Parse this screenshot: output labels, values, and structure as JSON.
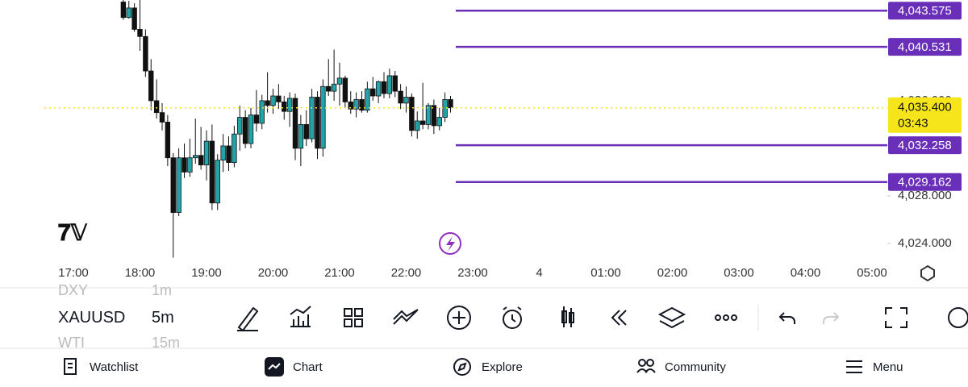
{
  "chart_data": {
    "type": "candlestick",
    "x": [
      "17:45",
      "17:50",
      "17:55",
      "18:00",
      "18:05",
      "18:10",
      "18:15",
      "18:20",
      "18:25",
      "18:30",
      "18:35",
      "18:40",
      "18:45",
      "18:50",
      "18:55",
      "19:00",
      "19:05",
      "19:10",
      "19:15",
      "19:20",
      "19:25",
      "19:30",
      "19:35",
      "19:40",
      "19:45",
      "19:50",
      "19:55",
      "20:00",
      "20:05",
      "20:10",
      "20:15",
      "20:20",
      "20:25",
      "20:30",
      "20:35",
      "20:40",
      "20:45",
      "20:50",
      "20:55",
      "21:00",
      "21:05",
      "21:10",
      "21:15",
      "21:20",
      "21:25",
      "21:30",
      "21:35",
      "21:40",
      "21:45",
      "21:50",
      "21:55",
      "22:00",
      "22:05",
      "22:10",
      "22:15",
      "22:20",
      "22:25",
      "22:30",
      "22:35",
      "22:40"
    ],
    "open": [
      4044.3,
      4043.0,
      4043.8,
      4042.0,
      4041.4,
      4038.5,
      4036.0,
      4035.0,
      4034.2,
      4031.2,
      4026.6,
      4031.2,
      4030.0,
      4031.2,
      4031.4,
      4030.6,
      4032.6,
      4027.4,
      4031.0,
      4032.2,
      4030.8,
      4033.2,
      4034.6,
      4032.4,
      4034.8,
      4034.1,
      4036.0,
      4035.6,
      4036.4,
      4035.9,
      4035.1,
      4036.2,
      4032.0,
      4034.0,
      4032.8,
      4036.3,
      4032.0,
      4037.2,
      4036.8,
      4037.4,
      4037.9,
      4035.9,
      4035.3,
      4036.1,
      4035.2,
      4037.0,
      4036.4,
      4037.6,
      4036.6,
      4038.1,
      4036.8,
      4035.8,
      4036.3,
      4033.5,
      4034.3,
      4034.0,
      4035.6,
      4033.9,
      4034.6,
      4036.1
    ],
    "high": [
      4044.6,
      4044.4,
      4044.2,
      4044.5,
      4042.0,
      4039.5,
      4037.8,
      4035.8,
      4034.8,
      4031.6,
      4032.0,
      4032.4,
      4032.8,
      4034.5,
      4033.8,
      4033.5,
      4034.0,
      4031.5,
      4033.2,
      4033.0,
      4033.9,
      4035.6,
      4035.2,
      4035.4,
      4036.9,
      4036.5,
      4038.4,
      4037.0,
      4037.4,
      4036.4,
      4036.7,
      4036.6,
      4034.8,
      4035.2,
      4037.0,
      4036.8,
      4037.8,
      4039.5,
      4040.3,
      4039.2,
      4038.1,
      4036.8,
      4036.7,
      4036.8,
      4037.6,
      4038.0,
      4037.7,
      4038.4,
      4038.7,
      4038.5,
      4037.4,
      4037.2,
      4036.6,
      4035.1,
      4037.5,
      4035.8,
      4036.1,
      4035.4,
      4036.7,
      4036.4
    ],
    "low": [
      4042.8,
      4042.9,
      4041.8,
      4040.2,
      4038.0,
      4035.2,
      4034.5,
      4033.5,
      4030.5,
      4022.8,
      4026.3,
      4029.5,
      4029.6,
      4030.7,
      4030.2,
      4029.3,
      4026.8,
      4026.8,
      4030.0,
      4030.1,
      4030.4,
      4031.8,
      4032.0,
      4032.0,
      4033.4,
      4033.6,
      4035.0,
      4034.9,
      4035.3,
      4034.4,
      4033.8,
      4031.0,
      4030.5,
      4032.2,
      4032.5,
      4031.1,
      4031.3,
      4036.4,
      4036.0,
      4035.6,
      4035.4,
      4034.9,
      4034.6,
      4035.0,
      4035.0,
      4036.0,
      4035.8,
      4036.2,
      4036.2,
      4036.3,
      4035.3,
      4035.0,
      4033.0,
      4032.8,
      4033.6,
      4033.6,
      4033.2,
      4033.5,
      4034.2,
      4035.0
    ],
    "close": [
      4043.0,
      4043.8,
      4042.0,
      4041.4,
      4038.5,
      4036.0,
      4035.0,
      4034.2,
      4031.2,
      4026.6,
      4031.2,
      4030.0,
      4031.2,
      4031.4,
      4030.6,
      4032.6,
      4027.4,
      4031.0,
      4032.2,
      4030.8,
      4033.2,
      4034.6,
      4032.4,
      4034.8,
      4034.1,
      4036.0,
      4035.6,
      4036.4,
      4035.9,
      4035.1,
      4036.2,
      4032.0,
      4034.0,
      4032.8,
      4036.3,
      4032.0,
      4037.2,
      4036.8,
      4037.4,
      4037.9,
      4035.9,
      4035.3,
      4036.1,
      4035.2,
      4037.0,
      4036.4,
      4037.6,
      4036.6,
      4038.1,
      4036.8,
      4035.8,
      4036.3,
      4033.5,
      4034.3,
      4034.0,
      4035.6,
      4033.9,
      4034.6,
      4036.1,
      4035.4
    ],
    "up_color": "#22a3a8",
    "down_color": "#111111",
    "ylim": [
      4020.4,
      4044.47
    ],
    "yticks": [
      {
        "value": 4024,
        "label": "4,024.000"
      },
      {
        "value": 4028,
        "label": "4,028.000"
      },
      {
        "value": 4036,
        "label": "4,036.000"
      }
    ],
    "xticks": [
      "17:00",
      "18:00",
      "19:00",
      "20:00",
      "21:00",
      "22:00",
      "23:00",
      "4",
      "01:00",
      "02:00",
      "03:00",
      "04:00",
      "05:00"
    ],
    "price_lines": [
      {
        "value": 4043.575,
        "label": "4,043.575"
      },
      {
        "value": 4040.531,
        "label": "4,040.531"
      },
      {
        "value": 4032.258,
        "label": "4,032.258"
      },
      {
        "value": 4029.162,
        "label": "4,029.162"
      }
    ],
    "price_line_color": "#6a2fb8",
    "current_price": {
      "value": 4035.4,
      "label": "4,035.400",
      "countdown": "03:43",
      "color": "#f7e51c"
    }
  },
  "toolbar": {
    "symbol_prev": "DXY",
    "interval_prev": "1m",
    "symbol": "XAUUSD",
    "interval": "5m",
    "symbol_next": "WTI",
    "interval_next": "15m"
  },
  "nav": [
    "Watchlist",
    "Chart",
    "Explore",
    "Community",
    "Menu"
  ]
}
